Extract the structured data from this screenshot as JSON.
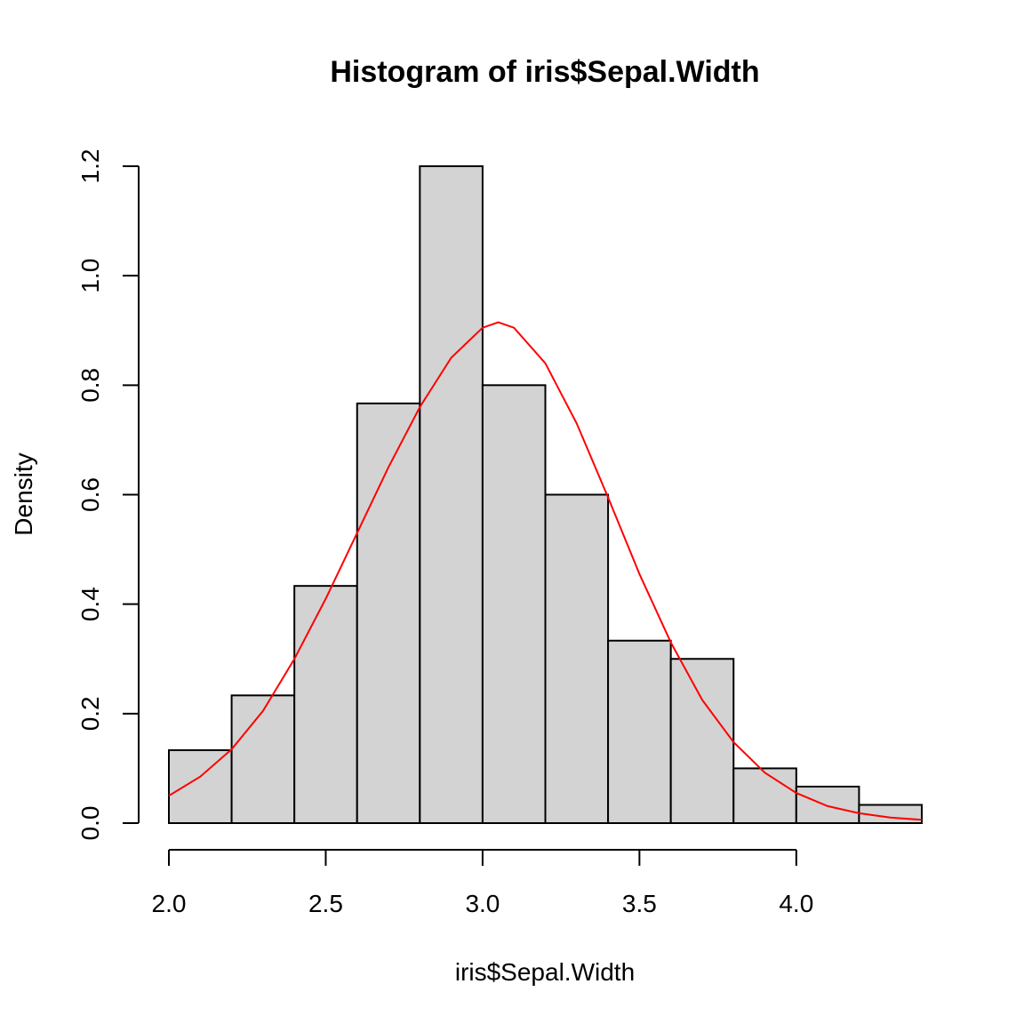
{
  "chart_data": {
    "type": "bar",
    "title": "Histogram of iris$Sepal.Width",
    "xlabel": "iris$Sepal.Width",
    "ylabel": "Density",
    "bin_edges": [
      2.0,
      2.2,
      2.4,
      2.6,
      2.8,
      3.0,
      3.2,
      3.4,
      3.6,
      3.8,
      4.0,
      4.2,
      4.4
    ],
    "values": [
      0.1333,
      0.2333,
      0.4333,
      0.7667,
      1.2,
      0.8,
      0.6,
      0.3333,
      0.3,
      0.1,
      0.0667,
      0.0333
    ],
    "xlim": [
      2.0,
      4.4
    ],
    "ylim": [
      0,
      1.2
    ],
    "x_ticks": [
      "2.0",
      "2.5",
      "3.0",
      "3.5",
      "4.0"
    ],
    "y_ticks": [
      "0.0",
      "0.2",
      "0.4",
      "0.6",
      "0.8",
      "1.0",
      "1.2"
    ],
    "density_curve": {
      "color": "#ff0000",
      "x": [
        2.0,
        2.1,
        2.2,
        2.3,
        2.4,
        2.5,
        2.6,
        2.7,
        2.8,
        2.9,
        3.0,
        3.05,
        3.1,
        3.2,
        3.3,
        3.4,
        3.5,
        3.6,
        3.7,
        3.8,
        3.9,
        4.0,
        4.1,
        4.2,
        4.3,
        4.4
      ],
      "y": [
        0.05,
        0.085,
        0.135,
        0.205,
        0.3,
        0.41,
        0.53,
        0.65,
        0.76,
        0.85,
        0.905,
        0.915,
        0.905,
        0.84,
        0.73,
        0.595,
        0.455,
        0.33,
        0.225,
        0.148,
        0.092,
        0.055,
        0.031,
        0.018,
        0.01,
        0.006
      ]
    },
    "colors": {
      "bar_fill": "#d3d3d3",
      "bar_stroke": "#000000",
      "curve": "#ff0000"
    },
    "grid": false
  }
}
